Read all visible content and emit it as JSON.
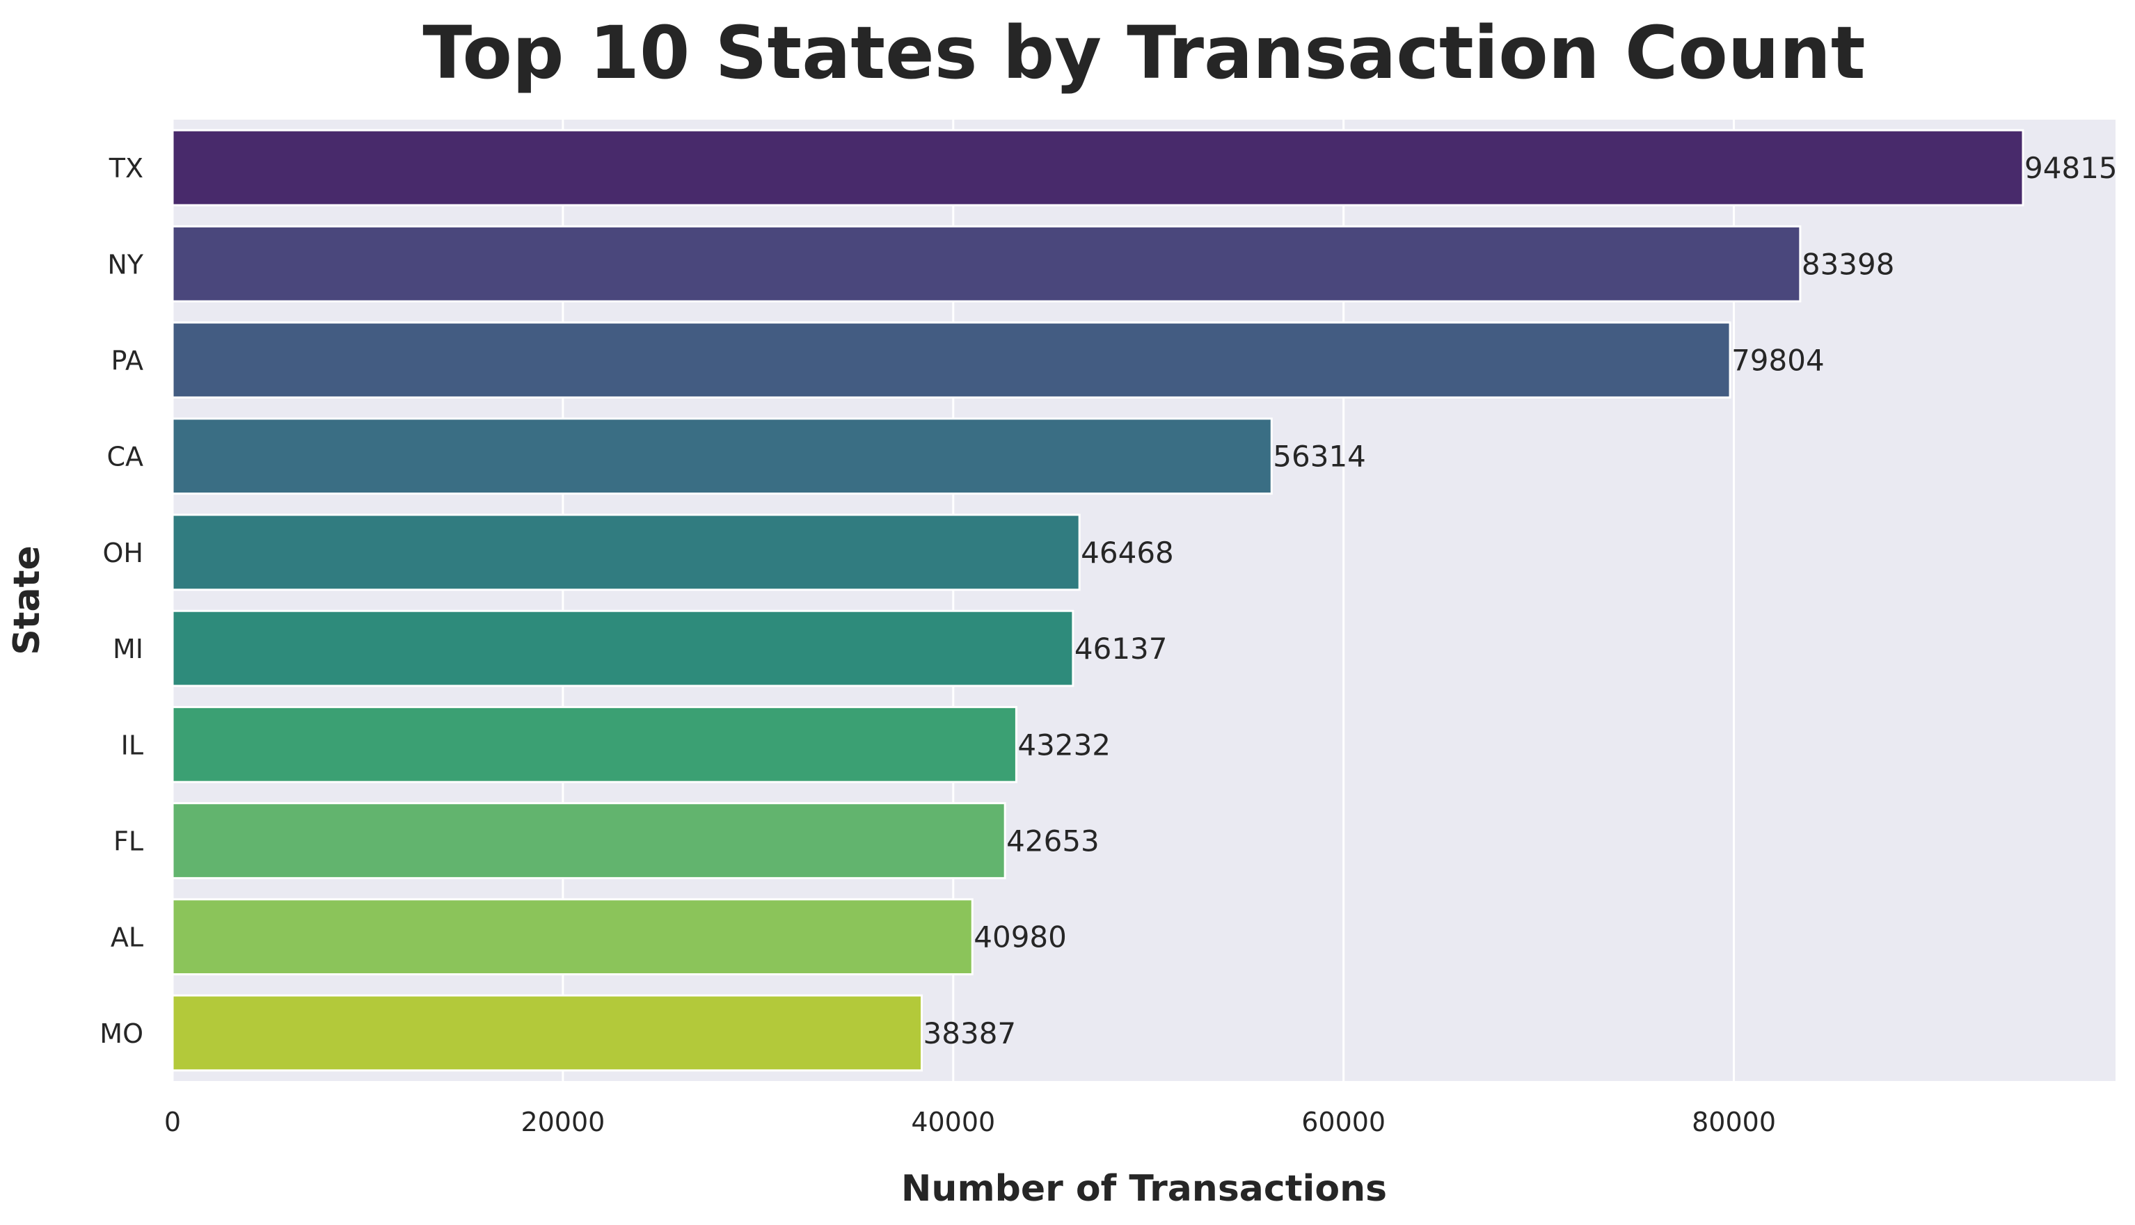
{
  "chart_data": {
    "type": "bar",
    "orientation": "horizontal",
    "title": "Top 10 States by Transaction Count",
    "xlabel": "Number of Transactions",
    "ylabel": "State",
    "categories": [
      "TX",
      "NY",
      "PA",
      "CA",
      "OH",
      "MI",
      "IL",
      "FL",
      "AL",
      "MO"
    ],
    "values": [
      94815,
      83398,
      79804,
      56314,
      46468,
      46137,
      43232,
      42653,
      40980,
      38387
    ],
    "data_labels": [
      "94815",
      "83398",
      "79804",
      "56314",
      "46468",
      "46137",
      "43232",
      "42653",
      "40980",
      "38387"
    ],
    "xlim": [
      0,
      99556
    ],
    "x_ticks": [
      0,
      20000,
      40000,
      60000,
      80000
    ],
    "x_tick_labels": [
      "0",
      "20000",
      "40000",
      "60000",
      "80000"
    ],
    "grid": true,
    "colors": {
      "plot_background": "#eaeaf2",
      "grid": "#ffffff",
      "text": "#262626",
      "bars": [
        "#482a6b",
        "#4a477c",
        "#435c82",
        "#3a6e84",
        "#317c80",
        "#2e8b7b",
        "#3ba073",
        "#62b46e",
        "#8bc45a",
        "#b3c93a"
      ]
    }
  }
}
